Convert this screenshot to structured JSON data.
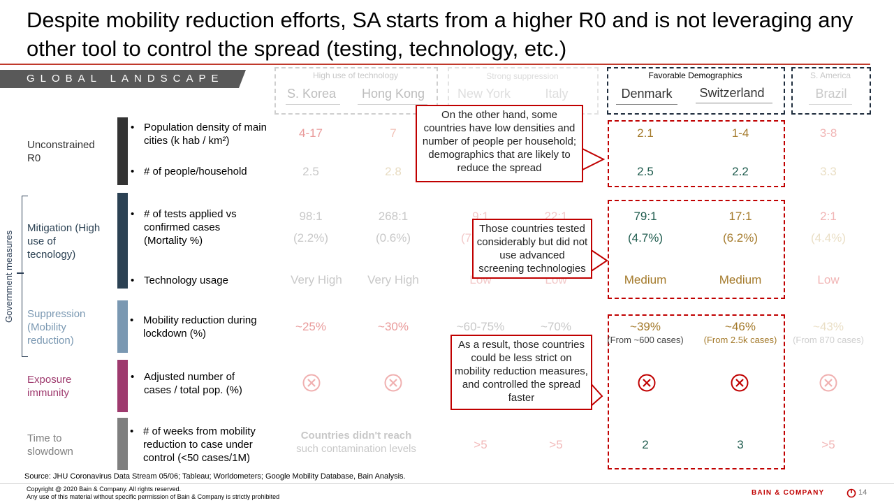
{
  "title": "Despite mobility reduction efforts, SA starts from a higher R0 and is not leveraging any other tool to control the spread (testing, technology, etc.)",
  "section_label": "GLOBAL LANDSCAPE",
  "groups": [
    {
      "label": "High use of technology",
      "countries": [
        "S. Korea",
        "Hong Kong"
      ]
    },
    {
      "label": "Strong suppression",
      "countries": [
        "New York",
        "Italy"
      ]
    },
    {
      "label": "Favorable Demographics",
      "countries": [
        "Denmark",
        "Switzerland"
      ]
    },
    {
      "label": "S. America",
      "countries": [
        "Brazil"
      ]
    }
  ],
  "side_label": "Government measures",
  "categories": [
    {
      "label": "Unconstrained R0",
      "color": "#333333"
    },
    {
      "label": "Mitigation (High use of tecnology)",
      "color": "#2b4153"
    },
    {
      "label": "Suppression (Mobility reduction)",
      "color": "#7a98b2"
    },
    {
      "label": "Exposure immunity",
      "color": "#9e3a6e"
    },
    {
      "label": "Time to slowdown",
      "color": "#7f7f7f"
    }
  ],
  "metrics": {
    "density": "Population density of main cities (k hab / km²)",
    "household": "# of people/household",
    "tests": "# of tests applied vs confirmed cases (Mortality %)",
    "technology": "Technology usage",
    "mobility": "Mobility reduction during lockdown (%)",
    "cases": "Adjusted number of cases / total pop. (%)",
    "weeks": "# of weeks from mobility reduction to case under control (<50 cases/1M)"
  },
  "values": {
    "korea": {
      "density": "4-17",
      "household": "2.5",
      "tests": "98:1",
      "mortality": "(2.2%)",
      "technology": "Very High",
      "mobility": "~25%"
    },
    "hongkong": {
      "density": "7",
      "household": "2.8",
      "tests": "268:1",
      "mortality": "(0.6%)",
      "technology": "Very High",
      "mobility": "~30%"
    },
    "newyork": {
      "tests": "9:1",
      "mortality": "(7",
      "technology": "Low",
      "mobility": "~60-75%",
      "weeks": ">5"
    },
    "italy": {
      "tests": "22:1",
      "technology": "Low",
      "mobility": "~70%",
      "weeks": ">5"
    },
    "denmark": {
      "density": "2.1",
      "household": "2.5",
      "tests": "79:1",
      "mortality": "(4.7%)",
      "technology": "Medium",
      "mobility": "~39%",
      "mobility_note": "(From ~600 cases)",
      "weeks": "2"
    },
    "switzerland": {
      "density": "1-4",
      "household": "2.2",
      "tests": "17:1",
      "mortality": "(6.2%)",
      "technology": "Medium",
      "mobility": "~46%",
      "mobility_note": "(From 2.5k cases)",
      "weeks": "3"
    },
    "brazil": {
      "density": "3-8",
      "household": "3.3",
      "tests": "2:1",
      "mortality": "(4.4%)",
      "technology": "Low",
      "mobility": "~43%",
      "mobility_note": "(From 870 cases)",
      "weeks": ">5"
    }
  },
  "no_reach": {
    "line1": "Countries didn't reach",
    "line2": "such contamination levels"
  },
  "callouts": {
    "demographics": "On the other hand, some countries have low densities and number of people per household; demographics that are likely to reduce the spread",
    "tested": "Those countries tested considerably but did not use advanced screening technologies",
    "result": "As a result, those countries could be less strict on mobility reduction measures, and controlled the spread faster"
  },
  "source": "Source: JHU Coronavirus Data Stream 05/06; Tableau; Worldometers; Google Mobility Database, Bain Analysis.",
  "copyright": {
    "line1": "Copyright @ 2020 Bain & Company. All rights reserved.",
    "line2": "Any use of this material without specific permission of Bain & Company is strictly prohibited"
  },
  "brand": "BAIN & COMPANY",
  "page_number": "14",
  "colors": {
    "accent_red": "#c00000",
    "gold": "#a47a2b",
    "teal": "#1f5c4e",
    "faded_red": "#e99a9a",
    "faded_gray": "#c8c8c8"
  }
}
